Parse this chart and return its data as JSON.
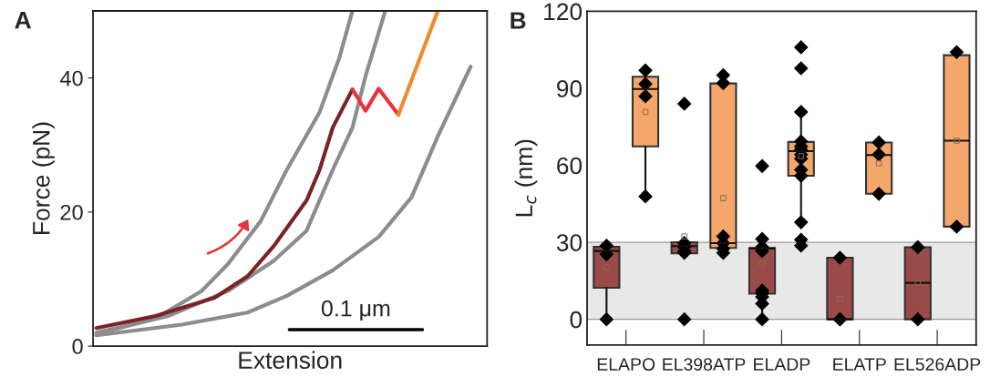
{
  "chart_data": [
    {
      "type": "line",
      "title": "A",
      "xlabel": "Extension",
      "ylabel": "Force (pN)",
      "ylim": [
        0,
        50
      ],
      "yticks": [
        0,
        20,
        40
      ],
      "tick_labels": "y",
      "grid": false,
      "annotations": [
        "0.1 μm"
      ],
      "categories": [
        null,
        null,
        null,
        null,
        null,
        null,
        null,
        null,
        null,
        null,
        null,
        null,
        null,
        null,
        null,
        null,
        null,
        null,
        null,
        null,
        null,
        null,
        null,
        null,
        null,
        null,
        null,
        null,
        null,
        null,
        null,
        null,
        null,
        null,
        null,
        null,
        null,
        null,
        null,
        null,
        null,
        null,
        null,
        null,
        null,
        null,
        null,
        null,
        null,
        null,
        null,
        null,
        null,
        null,
        null,
        null,
        null,
        null,
        null,
        null
      ],
      "series": [
        {
          "color": "#8c8c8c",
          "values": [
            1.8,
            null,
            null,
            null,
            null,
            null,
            null,
            null,
            null,
            4.1,
            null,
            null,
            null,
            null,
            null,
            null,
            8.2,
            null,
            null,
            null,
            12.2,
            null,
            null,
            null,
            null,
            18.6,
            null,
            null,
            null,
            26.3,
            null,
            null,
            null,
            null,
            34.9,
            null,
            null,
            43.0,
            null,
            50.0,
            null,
            null,
            null,
            null,
            null,
            null,
            null,
            null,
            null,
            null,
            null,
            null,
            null,
            null,
            null,
            null,
            null,
            null,
            null,
            null
          ]
        },
        {
          "color": "#8c8c8c",
          "values": [
            2.0,
            null,
            null,
            null,
            null,
            null,
            null,
            null,
            null,
            null,
            null,
            4.5,
            null,
            null,
            null,
            null,
            null,
            null,
            null,
            null,
            8.2,
            null,
            null,
            null,
            null,
            null,
            null,
            12.7,
            null,
            null,
            null,
            null,
            17.2,
            null,
            null,
            null,
            26.3,
            null,
            null,
            32.6,
            null,
            40.3,
            null,
            null,
            50.0,
            null,
            null,
            null,
            null,
            null,
            null,
            null,
            null,
            null,
            null,
            null,
            null,
            null,
            null,
            null
          ]
        },
        {
          "color": "#8c8c8c",
          "values": [
            1.6,
            null,
            null,
            null,
            null,
            null,
            null,
            null,
            null,
            null,
            null,
            null,
            null,
            3.2,
            null,
            null,
            null,
            null,
            null,
            null,
            null,
            null,
            null,
            5.0,
            null,
            null,
            null,
            null,
            null,
            7.5,
            null,
            null,
            null,
            null,
            null,
            null,
            11.3,
            null,
            null,
            null,
            null,
            null,
            null,
            16.3,
            null,
            null,
            null,
            null,
            22.2,
            null,
            null,
            null,
            31.3,
            null,
            null,
            null,
            null,
            41.7,
            null,
            null
          ]
        },
        {
          "color": "#7b2226",
          "values": [
            2.7,
            null,
            null,
            null,
            null,
            null,
            null,
            null,
            null,
            4.5,
            null,
            null,
            null,
            null,
            null,
            null,
            null,
            null,
            7.2,
            null,
            null,
            null,
            null,
            10.4,
            null,
            null,
            null,
            14.9,
            null,
            null,
            null,
            null,
            21.7,
            null,
            26.3,
            null,
            32.6,
            null,
            null,
            38.3,
            null,
            null,
            null,
            null,
            null,
            null,
            null,
            null,
            null,
            null,
            null,
            null,
            null,
            null,
            null,
            null,
            null,
            null,
            null,
            null
          ]
        },
        {
          "color": "#e8323c",
          "values": [
            null,
            null,
            null,
            null,
            null,
            null,
            null,
            null,
            null,
            null,
            null,
            null,
            null,
            null,
            null,
            null,
            null,
            null,
            null,
            null,
            null,
            null,
            null,
            null,
            null,
            null,
            null,
            null,
            null,
            null,
            null,
            null,
            null,
            null,
            null,
            null,
            null,
            null,
            null,
            38.3,
            null,
            35.1,
            null,
            38.4,
            null,
            null,
            34.5,
            null,
            null,
            null,
            null,
            null,
            null,
            null,
            null,
            null,
            null,
            null,
            null,
            null
          ]
        },
        {
          "color": "#f08a30",
          "values": [
            null,
            null,
            null,
            null,
            null,
            null,
            null,
            null,
            null,
            null,
            null,
            null,
            null,
            null,
            null,
            null,
            null,
            null,
            null,
            null,
            null,
            null,
            null,
            null,
            null,
            null,
            null,
            null,
            null,
            null,
            null,
            null,
            null,
            null,
            null,
            null,
            null,
            null,
            null,
            null,
            null,
            null,
            null,
            null,
            null,
            null,
            34.5,
            null,
            null,
            null,
            null,
            null,
            50.0,
            null,
            null,
            null,
            null,
            null,
            null,
            null
          ]
        }
      ]
    },
    {
      "type": "box",
      "title": "B",
      "ylabel": "L$_{c}$ (nm)",
      "categories": [
        "ELAPO",
        "EL398ATP",
        "ELADP",
        "ELATP",
        "EL526ADP"
      ],
      "ylim": [
        -10,
        120
      ],
      "yticks": [
        0,
        30,
        60,
        90,
        120
      ],
      "grid": false,
      "bands": [
        {
          "axis": "y",
          "from": 0,
          "to": 30,
          "color": "#e8e8e8"
        }
      ],
      "series": [
        {
          "color": "#9b4a4a",
          "boxes": [
            {
              "low": 0,
              "q1": 12.3,
              "median": 26.6,
              "q3": 28.2,
              "high": 28.2,
              "mean": 20.2,
              "outliers": [
                28.7,
                25.3,
                0
              ]
            },
            {
              "low": 25.7,
              "q1": 25.7,
              "median": 28.5,
              "q3": 30.0,
              "high": 30.0,
              "mean": 32.3,
              "outliers": [
                84.0,
                29.7,
                28.2,
                26.6,
                25.9,
                0
              ]
            },
            {
              "low": 0,
              "q1": 10.0,
              "median": 27.6,
              "q3": 27.8,
              "high": 27.8,
              "mean": 21.7,
              "outliers": [
                59.7,
                31.3,
                28.2,
                26.6,
                11.2,
                10.2,
                8.7,
                6.1,
                0
              ]
            },
            {
              "low": 0,
              "q1": 0,
              "median": 0,
              "q3": 24.0,
              "high": 24.0,
              "mean": 8.0,
              "outliers": [
                24.0,
                0,
                0
              ]
            },
            {
              "low": 0,
              "q1": 0,
              "median": 14.2,
              "q3": 28.1,
              "high": 28.1,
              "mean": 14.2,
              "outliers": [
                28.1,
                0
              ]
            }
          ]
        },
        {
          "color": "#f5a66a",
          "boxes": [
            {
              "low": 47.9,
              "q1": 67.4,
              "median": 89.7,
              "q3": 94.5,
              "high": 97.0,
              "mean": 80.8,
              "outliers": [
                97.0,
                91.7,
                86.9,
                47.9
              ]
            },
            {
              "low": 27.8,
              "q1": 27.8,
              "median": 29.7,
              "q3": 91.9,
              "high": 95.1,
              "mean": 47.2,
              "outliers": [
                95.1,
                92.0,
                32.3,
                29.7,
                27.5,
                25.9
              ]
            },
            {
              "low": 37.8,
              "q1": 55.9,
              "median": 65.5,
              "q3": 69.1,
              "high": 80.8,
              "mean": 63.6,
              "outliers": [
                106.0,
                97.8,
                80.8,
                69.3,
                67.4,
                66.1,
                64.2,
                62.6,
                58.2,
                55.9,
                37.8,
                31.0,
                28.7
              ]
            },
            {
              "low": 48.9,
              "q1": 48.9,
              "median": 64.0,
              "q3": 68.9,
              "high": 68.9,
              "mean": 60.8,
              "outliers": [
                68.9,
                64.2,
                48.9
              ]
            },
            {
              "low": 36.1,
              "q1": 36.1,
              "median": 69.6,
              "q3": 102.9,
              "high": 102.9,
              "mean": 69.6,
              "outliers": [
                104.1,
                36.1
              ]
            }
          ]
        }
      ]
    }
  ]
}
